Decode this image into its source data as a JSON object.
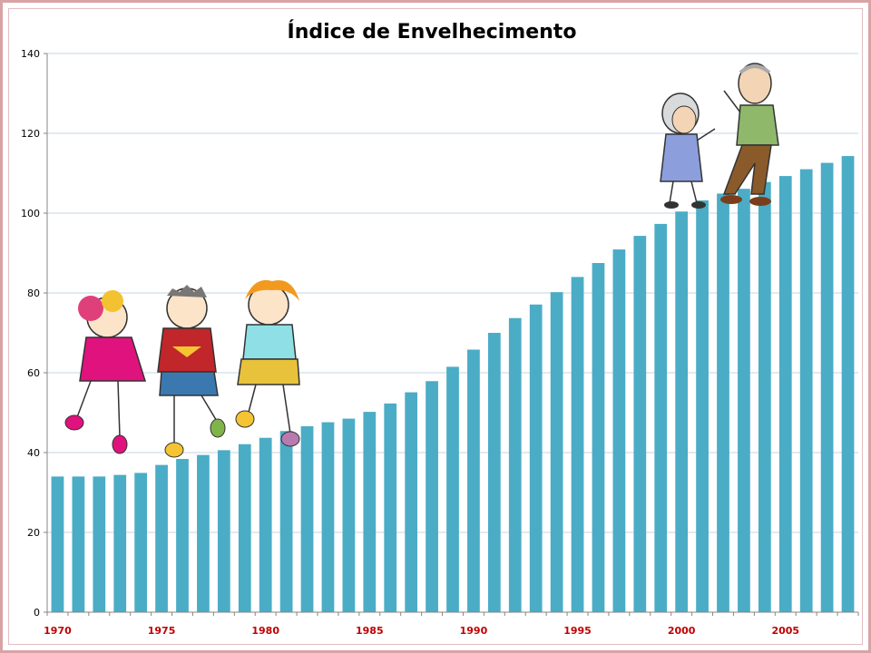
{
  "chart_data": {
    "type": "bar",
    "title": "Índice de Envelhecimento",
    "xlabel": "",
    "ylabel": "",
    "categories": [
      1970,
      1971,
      1972,
      1973,
      1974,
      1975,
      1976,
      1977,
      1978,
      1979,
      1980,
      1981,
      1982,
      1983,
      1984,
      1985,
      1986,
      1987,
      1988,
      1989,
      1990,
      1991,
      1992,
      1993,
      1994,
      1995,
      1996,
      1997,
      1998,
      1999,
      2000,
      2001,
      2002,
      2003,
      2004,
      2005,
      2006,
      2007,
      2008
    ],
    "values": [
      34.0,
      34.0,
      34.0,
      34.4,
      34.9,
      36.9,
      38.4,
      39.4,
      40.6,
      42.1,
      43.7,
      45.4,
      46.6,
      47.6,
      48.5,
      50.2,
      52.3,
      55.1,
      57.9,
      61.5,
      65.8,
      70.0,
      73.7,
      77.1,
      80.2,
      84.0,
      87.5,
      90.9,
      94.3,
      97.3,
      100.4,
      103.2,
      104.9,
      106.1,
      107.8,
      109.3,
      111.0,
      112.6,
      114.3
    ],
    "xtick_labels": [
      "1970",
      "1975",
      "1980",
      "1985",
      "1990",
      "1995",
      "2000",
      "2005"
    ],
    "yticks": [
      0,
      20,
      40,
      60,
      80,
      100,
      120,
      140
    ],
    "ylim": [
      0,
      140
    ],
    "grid": true,
    "legend": "none",
    "colors": {
      "bar": "#4bacc6",
      "grid": "#c6d4e3",
      "axis": "#868686",
      "xtick": "#c00000"
    }
  },
  "illustrations": [
    "children-dancing-icon",
    "elderly-couple-dancing-icon"
  ]
}
